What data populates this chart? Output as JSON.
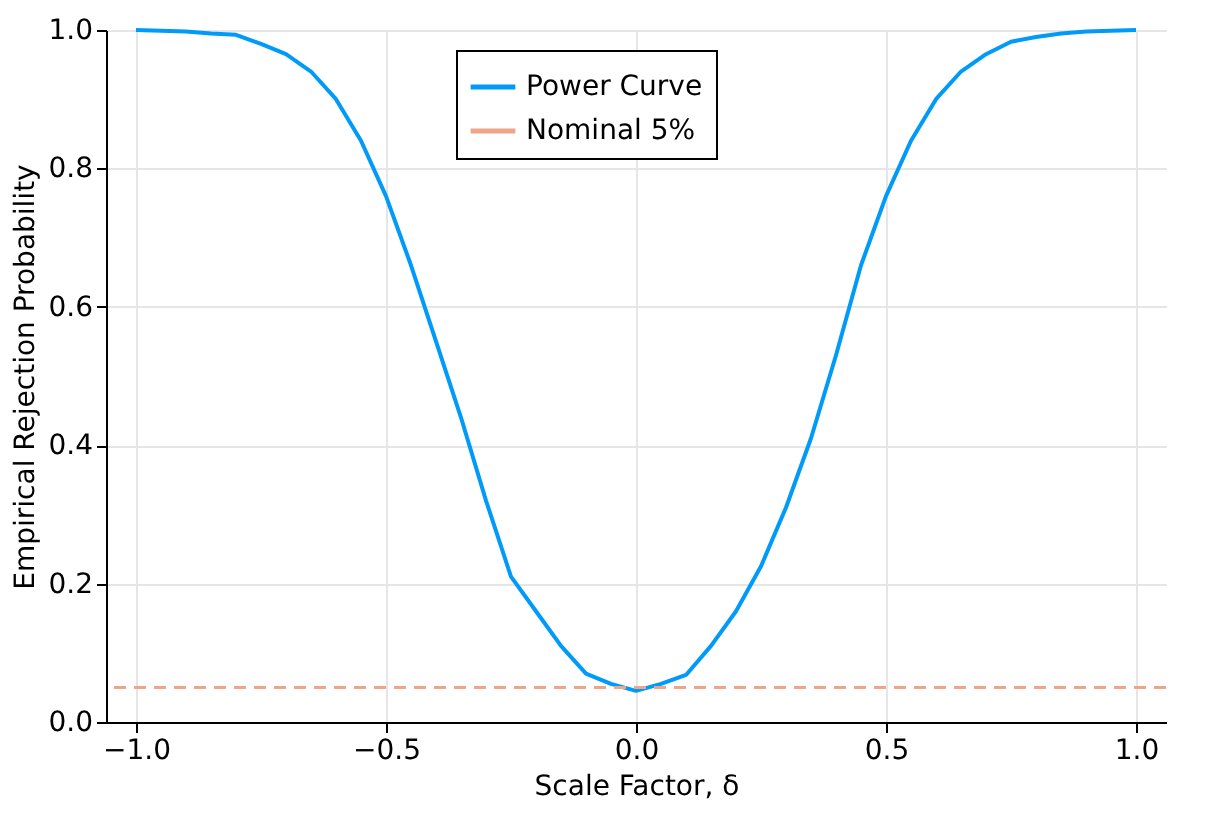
{
  "chart_data": {
    "type": "line",
    "xlabel": "Scale Factor, δ",
    "ylabel": "Empirical Rejection Probability",
    "x": [
      -1,
      -0.95,
      -0.9,
      -0.85,
      -0.8,
      -0.75,
      -0.7,
      -0.65,
      -0.6,
      -0.55,
      -0.5,
      -0.45,
      -0.4,
      -0.35,
      -0.3,
      -0.25,
      -0.2,
      -0.15,
      -0.1,
      -0.05,
      0,
      0.05,
      0.1,
      0.15,
      0.2,
      0.25,
      0.3,
      0.35,
      0.4,
      0.45,
      0.5,
      0.55,
      0.6,
      0.65,
      0.7,
      0.75,
      0.8,
      0.85,
      0.9,
      0.95,
      1
    ],
    "series": [
      {
        "name": "Power Curve",
        "color": "#009af9",
        "values": [
          1.0,
          0.999,
          0.998,
          0.995,
          0.993,
          0.98,
          0.965,
          0.94,
          0.9,
          0.84,
          0.76,
          0.66,
          0.55,
          0.44,
          0.32,
          0.21,
          0.16,
          0.11,
          0.07,
          0.055,
          0.045,
          0.055,
          0.068,
          0.11,
          0.16,
          0.225,
          0.31,
          0.41,
          0.53,
          0.66,
          0.76,
          0.84,
          0.9,
          0.94,
          0.965,
          0.983,
          0.99,
          0.995,
          0.998,
          0.999,
          1.0
        ]
      }
    ],
    "ref_lines": [
      {
        "axis": "y",
        "value": 0.05,
        "label": "Nominal 5%",
        "color": "#eea68a",
        "line_style": "dashed"
      }
    ],
    "xlim": [
      -1.06,
      1.06
    ],
    "xticks": [
      {
        "value": -1,
        "label": "−1.0"
      },
      {
        "value": -0.5,
        "label": "−0.5"
      },
      {
        "value": 0,
        "label": "0.0"
      },
      {
        "value": 0.5,
        "label": "0.5"
      },
      {
        "value": 1,
        "label": "1.0"
      }
    ],
    "ylim": [
      0,
      1
    ],
    "yticks": [
      {
        "value": 0,
        "label": "0.0"
      },
      {
        "value": 0.2,
        "label": "0.2"
      },
      {
        "value": 0.4,
        "label": "0.4"
      },
      {
        "value": 0.6,
        "label": "0.6"
      },
      {
        "value": 0.8,
        "label": "0.8"
      },
      {
        "value": 1,
        "label": "1.0"
      }
    ],
    "grid": true,
    "legend": "top",
    "line_style": "solid",
    "marker": "none"
  }
}
